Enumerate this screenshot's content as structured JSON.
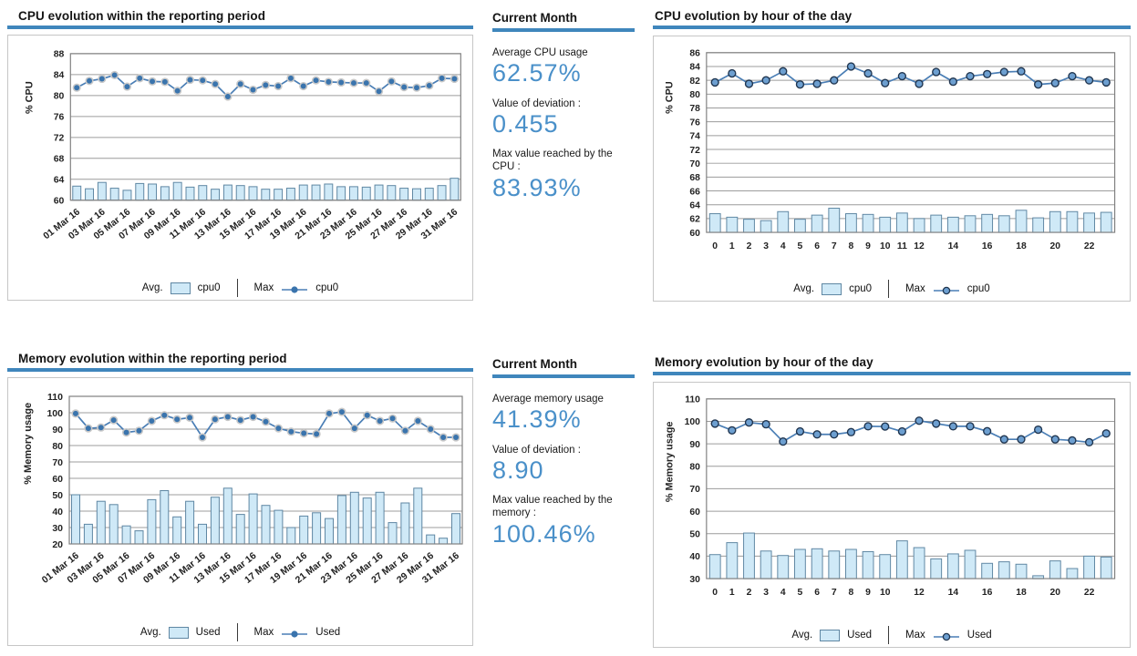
{
  "colors": {
    "accent": "#3f86bc",
    "stat_value": "#4a90c9",
    "bar_fill": "#cfe9f7",
    "bar_stroke": "#5f87a3",
    "line": "#4a7eb5",
    "marker_solid": "#3a74ad",
    "marker_halo": "#c8c8c8",
    "marker_outlined_fill": "#6d9fd0",
    "marker_outlined_stroke": "#20354f",
    "grid": "#9c9c9c",
    "plot_border": "#808080"
  },
  "stats": {
    "cpu": {
      "header": "Current Month",
      "items": [
        {
          "label": "Average CPU usage",
          "value": "62.57%"
        },
        {
          "label": "Value of deviation :",
          "value": "0.455"
        },
        {
          "label": "Max value reached by the CPU :",
          "value": "83.93%"
        }
      ]
    },
    "mem": {
      "header": "Current Month",
      "items": [
        {
          "label": "Average memory usage",
          "value": "41.39%"
        },
        {
          "label": "Value of deviation :",
          "value": "8.90"
        },
        {
          "label": "Max value reached by the memory :",
          "value": "100.46%"
        }
      ]
    }
  },
  "chart_data": [
    {
      "id": "cpu_period",
      "type": "bar+line",
      "title": "CPU evolution within the reporting period",
      "ylabel": "% CPU",
      "ylim": [
        60,
        88
      ],
      "ytick_step": 4,
      "grid": true,
      "legend_position": "bottom",
      "marker_style": "halo",
      "xtick_every": 2,
      "categories": [
        "01 Mar 16",
        "02 Mar 16",
        "03 Mar 16",
        "04 Mar 16",
        "05 Mar 16",
        "06 Mar 16",
        "07 Mar 16",
        "08 Mar 16",
        "09 Mar 16",
        "10 Mar 16",
        "11 Mar 16",
        "12 Mar 16",
        "13 Mar 16",
        "14 Mar 16",
        "15 Mar 16",
        "16 Mar 16",
        "17 Mar 16",
        "18 Mar 16",
        "19 Mar 16",
        "20 Mar 16",
        "21 Mar 16",
        "22 Mar 16",
        "23 Mar 16",
        "24 Mar 16",
        "25 Mar 16",
        "26 Mar 16",
        "27 Mar 16",
        "28 Mar 16",
        "29 Mar 16",
        "30 Mar 16",
        "31 Mar 16"
      ],
      "series": [
        {
          "name": "cpu0",
          "role": "Avg.",
          "type": "bar",
          "values": [
            62.7,
            62.2,
            63.4,
            62.3,
            61.9,
            63.2,
            63.1,
            62.6,
            63.4,
            62.5,
            62.8,
            62.1,
            62.9,
            62.8,
            62.6,
            62.1,
            62.1,
            62.3,
            62.9,
            62.9,
            63.1,
            62.6,
            62.6,
            62.5,
            62.9,
            62.8,
            62.3,
            62.2,
            62.3,
            62.8,
            64.2
          ]
        },
        {
          "name": "cpu0",
          "role": "Max",
          "type": "line",
          "values": [
            81.5,
            82.8,
            83.2,
            83.9,
            81.7,
            83.3,
            82.7,
            82.6,
            80.9,
            83.0,
            82.9,
            82.2,
            79.8,
            82.2,
            81.1,
            82.0,
            81.8,
            83.3,
            81.8,
            82.9,
            82.6,
            82.5,
            82.4,
            82.4,
            80.8,
            82.7,
            81.6,
            81.5,
            81.9,
            83.3,
            83.2
          ]
        }
      ],
      "legend": {
        "avg_label": "Avg.",
        "avg_series": "cpu0",
        "max_label": "Max",
        "max_series": "cpu0"
      }
    },
    {
      "id": "cpu_hours",
      "type": "bar+line",
      "title": "CPU evolution by hour of the day",
      "ylabel": "% CPU",
      "ylim": [
        60,
        86
      ],
      "ytick_step": 2,
      "grid": true,
      "legend_position": "bottom",
      "marker_style": "outlined",
      "categories": [
        "0",
        "1",
        "2",
        "3",
        "4",
        "5",
        "6",
        "7",
        "8",
        "9",
        "10",
        "11",
        "12",
        "13",
        "14",
        "15",
        "16",
        "17",
        "18",
        "19",
        "20",
        "21",
        "22",
        "23"
      ],
      "xtick_labels": [
        "0",
        "1",
        "2",
        "3",
        "4",
        "5",
        "6",
        "7",
        "8",
        "9",
        "10",
        "11",
        "12",
        "",
        "14",
        "",
        "16",
        "",
        "18",
        "",
        "20",
        "",
        "22",
        ""
      ],
      "series": [
        {
          "name": "cpu0",
          "role": "Avg.",
          "type": "bar",
          "values": [
            62.7,
            62.2,
            61.9,
            61.7,
            63.0,
            61.9,
            62.5,
            63.5,
            62.7,
            62.6,
            62.2,
            62.8,
            62.0,
            62.5,
            62.2,
            62.4,
            62.6,
            62.4,
            63.2,
            62.1,
            63.0,
            63.0,
            62.8,
            62.9
          ]
        },
        {
          "name": "cpu0",
          "role": "Max",
          "type": "line",
          "values": [
            81.7,
            83.0,
            81.5,
            82.0,
            83.3,
            81.4,
            81.5,
            82.0,
            84.0,
            83.0,
            81.6,
            82.6,
            81.5,
            83.2,
            81.8,
            82.6,
            82.9,
            83.2,
            83.3,
            81.4,
            81.6,
            82.6,
            82.0,
            81.7
          ]
        }
      ],
      "legend": {
        "avg_label": "Avg.",
        "avg_series": "cpu0",
        "max_label": "Max",
        "max_series": "cpu0"
      }
    },
    {
      "id": "mem_period",
      "type": "bar+line",
      "title": "Memory evolution within the reporting period",
      "ylabel": "% Memory usage",
      "ylim": [
        20,
        110
      ],
      "ytick_step": 10,
      "grid": true,
      "legend_position": "bottom",
      "marker_style": "halo",
      "xtick_every": 2,
      "categories": [
        "01 Mar 16",
        "02 Mar 16",
        "03 Mar 16",
        "04 Mar 16",
        "05 Mar 16",
        "06 Mar 16",
        "07 Mar 16",
        "08 Mar 16",
        "09 Mar 16",
        "10 Mar 16",
        "11 Mar 16",
        "12 Mar 16",
        "13 Mar 16",
        "14 Mar 16",
        "15 Mar 16",
        "16 Mar 16",
        "17 Mar 16",
        "18 Mar 16",
        "19 Mar 16",
        "20 Mar 16",
        "21 Mar 16",
        "22 Mar 16",
        "23 Mar 16",
        "24 Mar 16",
        "25 Mar 16",
        "26 Mar 16",
        "27 Mar 16",
        "28 Mar 16",
        "29 Mar 16",
        "30 Mar 16",
        "31 Mar 16"
      ],
      "series": [
        {
          "name": "Used",
          "role": "Avg.",
          "type": "bar",
          "values": [
            50,
            32,
            46,
            44,
            31,
            28,
            47,
            52.5,
            36.5,
            46,
            32,
            48.5,
            54,
            38,
            50.5,
            43.5,
            40.5,
            30,
            37,
            39,
            35.5,
            49.5,
            51.5,
            48,
            51.5,
            33,
            45,
            54,
            25.5,
            23.5,
            38.5
          ]
        },
        {
          "name": "Used",
          "role": "Max",
          "type": "line",
          "values": [
            99.5,
            90.5,
            91,
            95.5,
            88,
            89,
            95,
            98.5,
            96,
            97,
            85,
            96,
            97.5,
            95.5,
            97.5,
            94.5,
            90.5,
            88.5,
            87.5,
            87,
            99.5,
            100.5,
            90.5,
            98.5,
            95,
            96.5,
            89,
            95,
            90,
            85,
            85
          ]
        }
      ],
      "legend": {
        "avg_label": "Avg.",
        "avg_series": "Used",
        "max_label": "Max",
        "max_series": "Used"
      }
    },
    {
      "id": "mem_hours",
      "type": "bar+line",
      "title": "Memory evolution by hour of the day",
      "ylabel": "% Memory usage",
      "ylim": [
        30,
        110
      ],
      "ytick_step": 10,
      "grid": true,
      "legend_position": "bottom",
      "marker_style": "outlined",
      "categories": [
        "0",
        "1",
        "2",
        "3",
        "4",
        "5",
        "6",
        "7",
        "8",
        "9",
        "10",
        "11",
        "12",
        "13",
        "14",
        "15",
        "16",
        "17",
        "18",
        "19",
        "20",
        "21",
        "22",
        "23"
      ],
      "xtick_labels": [
        "0",
        "1",
        "2",
        "3",
        "4",
        "5",
        "6",
        "7",
        "8",
        "9",
        "10",
        "",
        "12",
        "",
        "14",
        "",
        "16",
        "",
        "18",
        "",
        "20",
        "",
        "22",
        ""
      ],
      "series": [
        {
          "name": "Used",
          "role": "Avg.",
          "type": "bar",
          "values": [
            40.7,
            46,
            50.3,
            42.3,
            40.3,
            43,
            43.3,
            42.3,
            43,
            42,
            40.7,
            46.8,
            43.8,
            38.8,
            41,
            42.6,
            36.8,
            37.5,
            36.4,
            31.3,
            37.9,
            34.5,
            40,
            39.6
          ]
        },
        {
          "name": "Used",
          "role": "Max",
          "type": "line",
          "values": [
            99,
            96,
            99.5,
            98.7,
            91,
            95.5,
            94.2,
            94.2,
            95.2,
            97.8,
            97.7,
            95.5,
            100.3,
            99,
            97.8,
            97.8,
            95.6,
            92,
            92,
            96.3,
            92,
            91.5,
            90.7,
            94.6
          ]
        }
      ],
      "legend": {
        "avg_label": "Avg.",
        "avg_series": "Used",
        "max_label": "Max",
        "max_series": "Used"
      }
    }
  ]
}
